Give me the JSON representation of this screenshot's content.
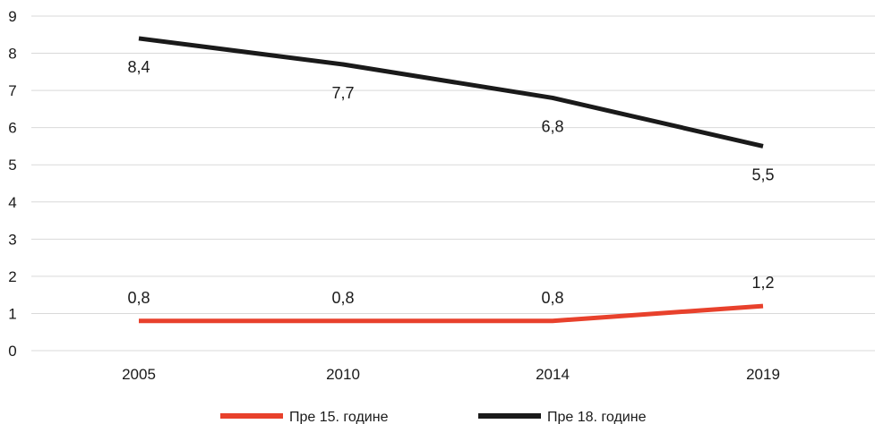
{
  "chart_data": {
    "type": "line",
    "categories": [
      "2005",
      "2010",
      "2014",
      "2019"
    ],
    "ylim": [
      0,
      9
    ],
    "yticks": [
      0,
      1,
      2,
      3,
      4,
      5,
      6,
      7,
      8,
      9
    ],
    "grid": true,
    "legend_position": "bottom",
    "series": [
      {
        "name": "Пре 15. године",
        "values": [
          0.8,
          0.8,
          0.8,
          1.2
        ],
        "labels": [
          "0,8",
          "0,8",
          "0,8",
          "1,2"
        ],
        "color": "#e8412c"
      },
      {
        "name": "Пре 18. године",
        "values": [
          8.4,
          7.7,
          6.8,
          5.5
        ],
        "labels": [
          "8,4",
          "7,7",
          "6,8",
          "5,5"
        ],
        "color": "#1a1a1a"
      }
    ]
  }
}
